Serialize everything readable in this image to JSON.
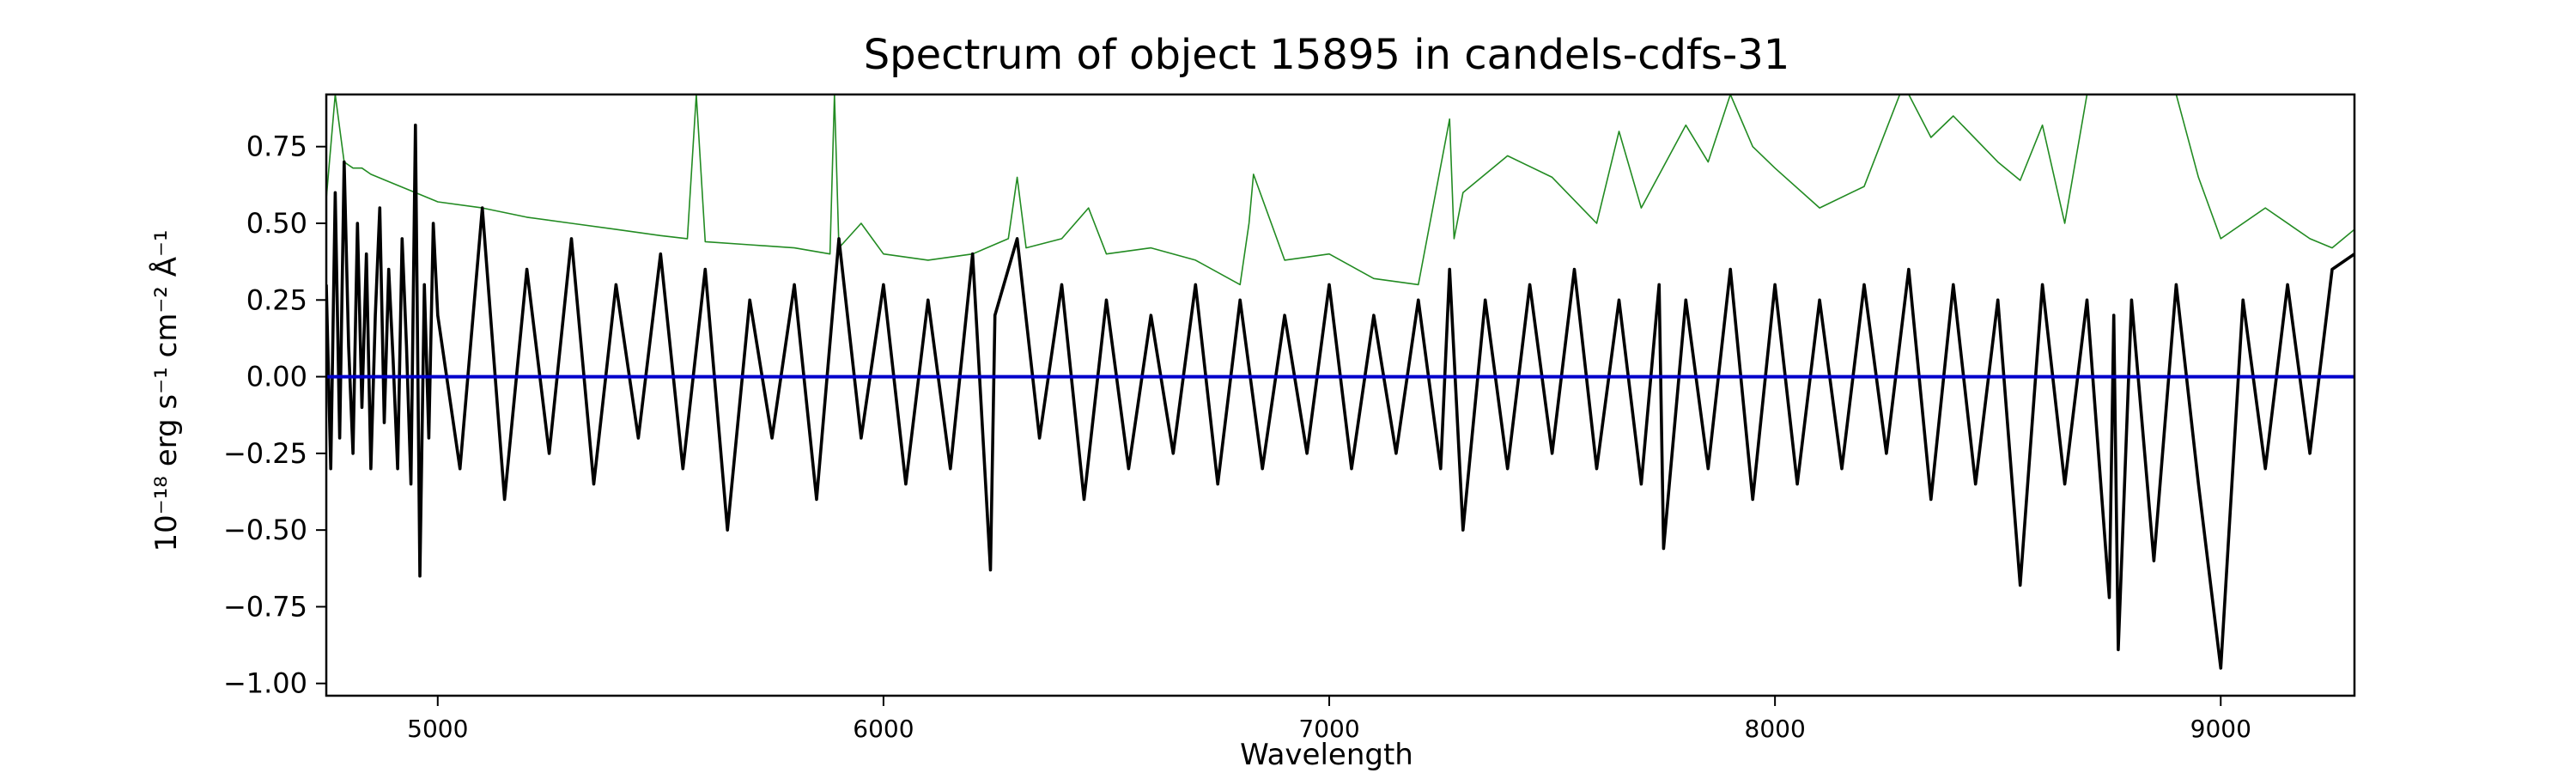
{
  "chart_data": {
    "type": "line",
    "title": "Spectrum of object 15895 in candels-cdfs-31",
    "xlabel": "Wavelength",
    "ylabel": "10⁻¹⁸ erg s⁻¹ cm⁻² Å⁻¹",
    "xlim": [
      4750,
      9300
    ],
    "ylim": [
      -1.04,
      0.92
    ],
    "x_ticks": [
      5000,
      6000,
      7000,
      8000,
      9000
    ],
    "y_ticks": [
      0.75,
      0.5,
      0.25,
      0.0,
      -0.25,
      -0.5,
      -0.75,
      -1.0
    ],
    "x_tick_labels": [
      "5000",
      "6000",
      "7000",
      "8000",
      "9000"
    ],
    "y_tick_labels": [
      "0.75",
      "0.50",
      "0.25",
      "0.00",
      "−0.25",
      "−0.50",
      "−0.75",
      "−1.00"
    ],
    "grid": false,
    "series": [
      {
        "color": "#228B22",
        "role": "noise",
        "x": [
          4750,
          4770,
          4790,
          4810,
          4830,
          4850,
          4900,
          4950,
          5000,
          5100,
          5200,
          5300,
          5400,
          5500,
          5560,
          5580,
          5600,
          5700,
          5800,
          5880,
          5890,
          5900,
          5950,
          6000,
          6100,
          6200,
          6280,
          6300,
          6320,
          6400,
          6460,
          6500,
          6600,
          6700,
          6800,
          6820,
          6830,
          6900,
          7000,
          7100,
          7200,
          7270,
          7280,
          7300,
          7400,
          7500,
          7600,
          7650,
          7700,
          7800,
          7850,
          7900,
          7950,
          8000,
          8100,
          8200,
          8280,
          8300,
          8350,
          8400,
          8500,
          8550,
          8600,
          8650,
          8700,
          8750,
          8800,
          8850,
          8900,
          8950,
          9000,
          9100,
          9200,
          9250,
          9300
        ],
        "y": [
          0.58,
          0.92,
          0.7,
          0.68,
          0.68,
          0.66,
          0.63,
          0.6,
          0.57,
          0.55,
          0.52,
          0.5,
          0.48,
          0.46,
          0.45,
          0.92,
          0.44,
          0.43,
          0.42,
          0.4,
          0.92,
          0.42,
          0.5,
          0.4,
          0.38,
          0.4,
          0.45,
          0.65,
          0.42,
          0.45,
          0.55,
          0.4,
          0.42,
          0.38,
          0.3,
          0.5,
          0.66,
          0.38,
          0.4,
          0.32,
          0.3,
          0.84,
          0.45,
          0.6,
          0.72,
          0.65,
          0.5,
          0.8,
          0.55,
          0.82,
          0.7,
          0.92,
          0.75,
          0.68,
          0.55,
          0.62,
          0.92,
          0.92,
          0.78,
          0.85,
          0.7,
          0.64,
          0.82,
          0.5,
          0.92,
          0.92,
          0.92,
          0.92,
          0.92,
          0.65,
          0.45,
          0.55,
          0.45,
          0.42,
          0.48
        ]
      },
      {
        "color": "#000000",
        "role": "flux",
        "x": [
          4750,
          4760,
          4770,
          4780,
          4790,
          4800,
          4810,
          4820,
          4830,
          4840,
          4850,
          4860,
          4870,
          4880,
          4890,
          4900,
          4910,
          4920,
          4930,
          4940,
          4950,
          4960,
          4970,
          4980,
          4990,
          5000,
          5050,
          5100,
          5150,
          5200,
          5250,
          5300,
          5350,
          5400,
          5450,
          5500,
          5550,
          5600,
          5650,
          5700,
          5750,
          5800,
          5850,
          5900,
          5950,
          6000,
          6050,
          6100,
          6150,
          6200,
          6240,
          6250,
          6300,
          6350,
          6400,
          6450,
          6500,
          6550,
          6600,
          6650,
          6700,
          6750,
          6800,
          6850,
          6900,
          6950,
          7000,
          7050,
          7100,
          7150,
          7200,
          7250,
          7270,
          7300,
          7350,
          7400,
          7450,
          7500,
          7550,
          7600,
          7650,
          7700,
          7740,
          7750,
          7800,
          7850,
          7900,
          7950,
          8000,
          8050,
          8100,
          8150,
          8200,
          8250,
          8300,
          8350,
          8400,
          8450,
          8500,
          8550,
          8600,
          8650,
          8700,
          8750,
          8760,
          8770,
          8800,
          8850,
          8900,
          8950,
          9000,
          9050,
          9100,
          9150,
          9200,
          9250,
          9300
        ],
        "y": [
          0.3,
          -0.3,
          0.6,
          -0.2,
          0.7,
          0.1,
          -0.25,
          0.5,
          -0.1,
          0.4,
          -0.3,
          0.2,
          0.55,
          -0.15,
          0.35,
          0.05,
          -0.3,
          0.45,
          0.1,
          -0.35,
          0.82,
          -0.65,
          0.3,
          -0.2,
          0.5,
          0.2,
          -0.3,
          0.55,
          -0.4,
          0.35,
          -0.25,
          0.45,
          -0.35,
          0.3,
          -0.2,
          0.4,
          -0.3,
          0.35,
          -0.5,
          0.25,
          -0.2,
          0.3,
          -0.4,
          0.45,
          -0.2,
          0.3,
          -0.35,
          0.25,
          -0.3,
          0.4,
          -0.63,
          0.2,
          0.45,
          -0.2,
          0.3,
          -0.4,
          0.25,
          -0.3,
          0.2,
          -0.25,
          0.3,
          -0.35,
          0.25,
          -0.3,
          0.2,
          -0.25,
          0.3,
          -0.3,
          0.2,
          -0.25,
          0.25,
          -0.3,
          0.35,
          -0.5,
          0.25,
          -0.3,
          0.3,
          -0.25,
          0.35,
          -0.3,
          0.25,
          -0.35,
          0.3,
          -0.56,
          0.25,
          -0.3,
          0.35,
          -0.4,
          0.3,
          -0.35,
          0.25,
          -0.3,
          0.3,
          -0.25,
          0.35,
          -0.4,
          0.3,
          -0.35,
          0.25,
          -0.68,
          0.3,
          -0.35,
          0.25,
          -0.72,
          0.2,
          -0.89,
          0.25,
          -0.6,
          0.3,
          -0.35,
          -0.95,
          0.25,
          -0.3,
          0.3,
          -0.25,
          0.35,
          0.4
        ]
      },
      {
        "color": "#0000cc",
        "role": "model",
        "x": [
          4750,
          9300
        ],
        "y": [
          0.0,
          0.0
        ]
      }
    ]
  }
}
